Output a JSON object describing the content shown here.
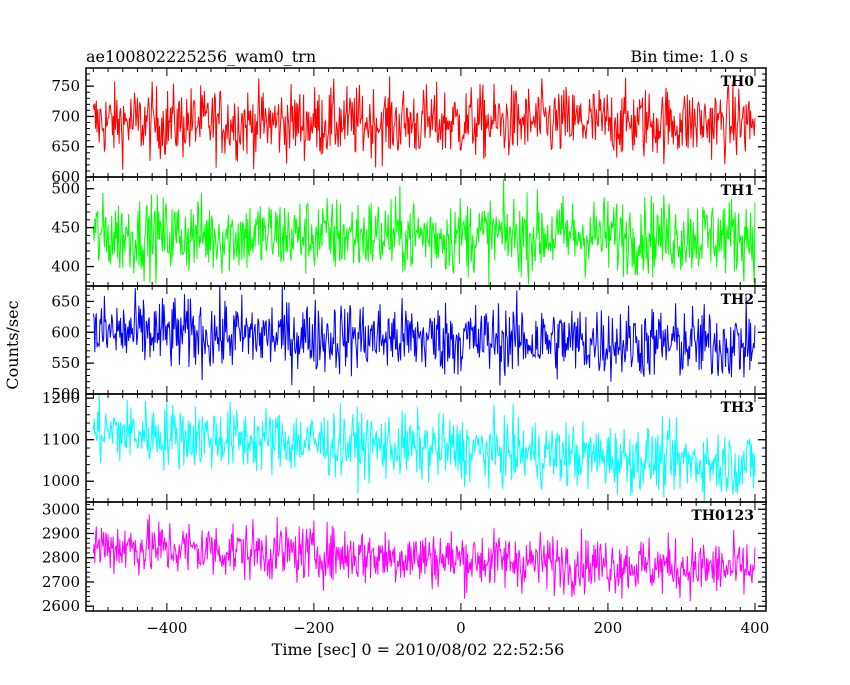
{
  "header": {
    "left_title": "ae100802225256_wam0_trn",
    "right_title": "Bin time: 1.0 s"
  },
  "chart_data": [
    {
      "type": "line",
      "series": [
        {
          "name": "TH0",
          "color": "#ff0000",
          "mean": 690,
          "spread": 30,
          "trend": 0
        }
      ],
      "ylim": [
        600,
        780
      ],
      "yticks": [
        "600",
        "650",
        "700",
        "750"
      ],
      "ytick_values": [
        600,
        650,
        700,
        750
      ],
      "xlim": [
        -510,
        415
      ]
    },
    {
      "type": "line",
      "series": [
        {
          "name": "TH1",
          "color": "#00ff00",
          "mean": 440,
          "spread": 25,
          "trend": 0
        }
      ],
      "ylim": [
        375,
        515
      ],
      "yticks": [
        "400",
        "450",
        "500"
      ],
      "ytick_values": [
        400,
        450,
        500
      ],
      "xlim": [
        -510,
        415
      ]
    },
    {
      "type": "line",
      "series": [
        {
          "name": "TH2",
          "color": "#0000ff",
          "mean": 590,
          "spread": 30,
          "trend": -10
        }
      ],
      "ylim": [
        500,
        675
      ],
      "yticks": [
        "500",
        "550",
        "600",
        "650"
      ],
      "ytick_values": [
        500,
        550,
        600,
        650
      ],
      "xlim": [
        -510,
        415
      ]
    },
    {
      "type": "line",
      "series": [
        {
          "name": "TH3",
          "color": "#00ffff",
          "mean": 1080,
          "spread": 40,
          "trend": -40
        }
      ],
      "ylim": [
        950,
        1210
      ],
      "yticks": [
        "1000",
        "1100",
        "1200"
      ],
      "ytick_values": [
        1000,
        1100,
        1200
      ],
      "xlim": [
        -510,
        415
      ]
    },
    {
      "type": "line",
      "series": [
        {
          "name": "TH0123",
          "color": "#ff00ff",
          "mean": 2800,
          "spread": 60,
          "trend": -50
        }
      ],
      "ylim": [
        2580,
        3030
      ],
      "yticks": [
        "2600",
        "2700",
        "2800",
        "2900",
        "3000"
      ],
      "ytick_values": [
        2600,
        2700,
        2800,
        2900,
        3000
      ],
      "xlim": [
        -510,
        415
      ]
    }
  ],
  "x_axis": {
    "xlabel": "Time [sec] 0 = 2010/08/02 22:52:56",
    "ticks": [
      "−400",
      "−200",
      "0",
      "200",
      "400"
    ],
    "tick_values": [
      -400,
      -200,
      0,
      200,
      400
    ],
    "xlim": [
      -510,
      415
    ],
    "data_range": [
      -500,
      400
    ]
  },
  "y_axis": {
    "ylabel": "Counts/sec"
  }
}
